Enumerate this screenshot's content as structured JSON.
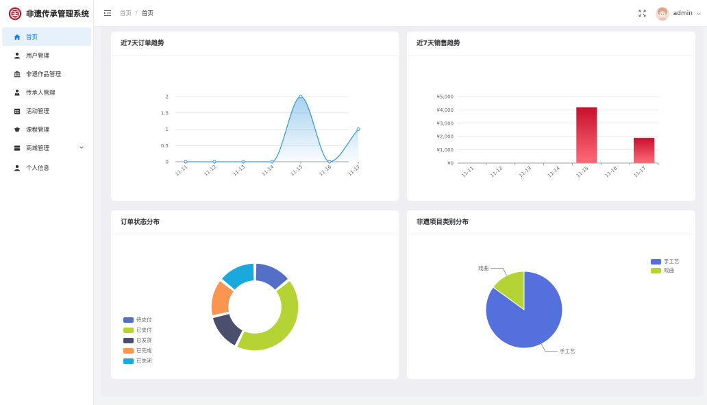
{
  "app": {
    "title": "非遗传承管理系统"
  },
  "sidebar": {
    "items": [
      {
        "label": "首页",
        "icon": "home-icon",
        "active": true
      },
      {
        "label": "用户管理",
        "icon": "user-icon"
      },
      {
        "label": "非遗作品管理",
        "icon": "bank-icon"
      },
      {
        "label": "传承人管理",
        "icon": "person-icon"
      },
      {
        "label": "活动管理",
        "icon": "calendar-icon"
      },
      {
        "label": "课程管理",
        "icon": "graduation-cap-icon"
      },
      {
        "label": "商城管理",
        "icon": "store-icon",
        "expandable": true
      },
      {
        "label": "个人信息",
        "icon": "user-icon"
      }
    ]
  },
  "header": {
    "breadcrumb": [
      "首页",
      "首页"
    ],
    "user": "admin"
  },
  "colors": {
    "accent": "#1677ff",
    "line": "#3a9ad9",
    "bar_top": "#c8102e",
    "bar_bottom": "#ff6b76"
  },
  "cards": {
    "orders_trend": {
      "title": "近7天订单趋势"
    },
    "sales_trend": {
      "title": "近7天销售趋势"
    },
    "order_status": {
      "title": "订单状态分布"
    },
    "category": {
      "title": "非遗项目类别分布"
    }
  },
  "chart_data": [
    {
      "type": "line",
      "title": "近7天订单趋势",
      "categories": [
        "11-11",
        "11-12",
        "11-13",
        "11-14",
        "11-15",
        "11-16",
        "11-17"
      ],
      "values": [
        0,
        0,
        0,
        0,
        2,
        0,
        1
      ],
      "yticks": [
        "0",
        "0.5",
        "1",
        "1.5",
        "2"
      ],
      "ylim": [
        0,
        2
      ],
      "smooth": true,
      "area": true
    },
    {
      "type": "bar",
      "title": "近7天销售趋势",
      "categories": [
        "11-11",
        "11-12",
        "11-13",
        "11-14",
        "11-15",
        "11-16",
        "11-17"
      ],
      "values": [
        0,
        0,
        0,
        0,
        4200,
        0,
        1900
      ],
      "yticks": [
        "¥0",
        "¥1,000",
        "¥2,000",
        "¥3,000",
        "¥4,000",
        "¥5,000"
      ],
      "ylim": [
        0,
        5000
      ]
    },
    {
      "type": "pie",
      "title": "订单状态分布",
      "donut": true,
      "legend_position": "bottom-left",
      "slices": [
        {
          "name": "待支付",
          "value": 4,
          "color": "#5470c6"
        },
        {
          "name": "已支付",
          "value": 12,
          "color": "#b5d334"
        },
        {
          "name": "已发货",
          "value": 4,
          "color": "#4b4e6d"
        },
        {
          "name": "已完成",
          "value": 4,
          "color": "#fc9550"
        },
        {
          "name": "已关闭",
          "value": 4,
          "color": "#1aa9dc"
        }
      ]
    },
    {
      "type": "pie",
      "title": "非遗项目类别分布",
      "donut": false,
      "legend_position": "top-right",
      "slices": [
        {
          "name": "手工艺",
          "value": 85,
          "color": "#5470dc"
        },
        {
          "name": "戏曲",
          "value": 15,
          "color": "#b5d334"
        }
      ]
    }
  ]
}
